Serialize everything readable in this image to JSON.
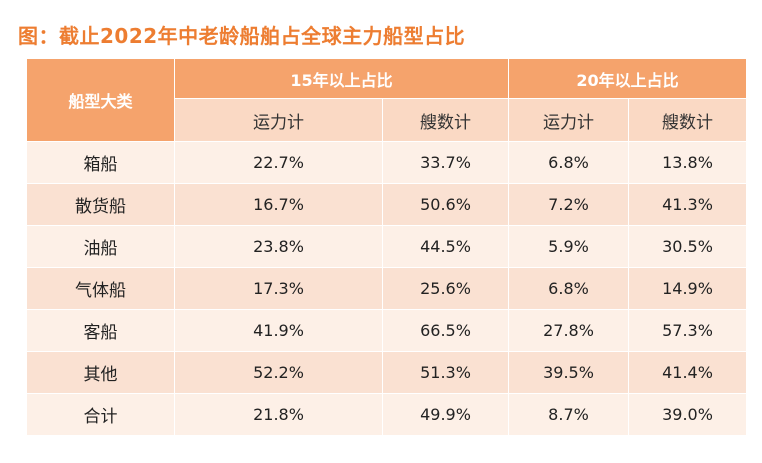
{
  "title": "图：截止2022年中老龄船舶占全球主力船型占比",
  "table": {
    "corner_header": "船型大类",
    "groups": [
      {
        "label": "15年以上占比"
      },
      {
        "label": "20年以上占比"
      }
    ],
    "sub_headers": [
      "运力计",
      "艘数计",
      "运力计",
      "艘数计"
    ],
    "rows": [
      {
        "type": "箱船",
        "v": [
          "22.7%",
          "33.7%",
          "6.8%",
          "13.8%"
        ]
      },
      {
        "type": "散货船",
        "v": [
          "16.7%",
          "50.6%",
          "7.2%",
          "41.3%"
        ]
      },
      {
        "type": "油船",
        "v": [
          "23.8%",
          "44.5%",
          "5.9%",
          "30.5%"
        ]
      },
      {
        "type": "气体船",
        "v": [
          "17.3%",
          "25.6%",
          "6.8%",
          "14.9%"
        ]
      },
      {
        "type": "客船",
        "v": [
          "41.9%",
          "66.5%",
          "27.8%",
          "57.3%"
        ]
      },
      {
        "type": "其他",
        "v": [
          "52.2%",
          "51.3%",
          "39.5%",
          "41.4%"
        ]
      },
      {
        "type": "合计",
        "v": [
          "21.8%",
          "49.9%",
          "8.7%",
          "39.0%"
        ]
      }
    ]
  },
  "colors": {
    "title": "#ED7D31",
    "header_bg": "#F5A36C",
    "subheader_bg": "#FAD9C4",
    "row_light": "#FDF0E7",
    "row_dark": "#FAE1D2"
  }
}
